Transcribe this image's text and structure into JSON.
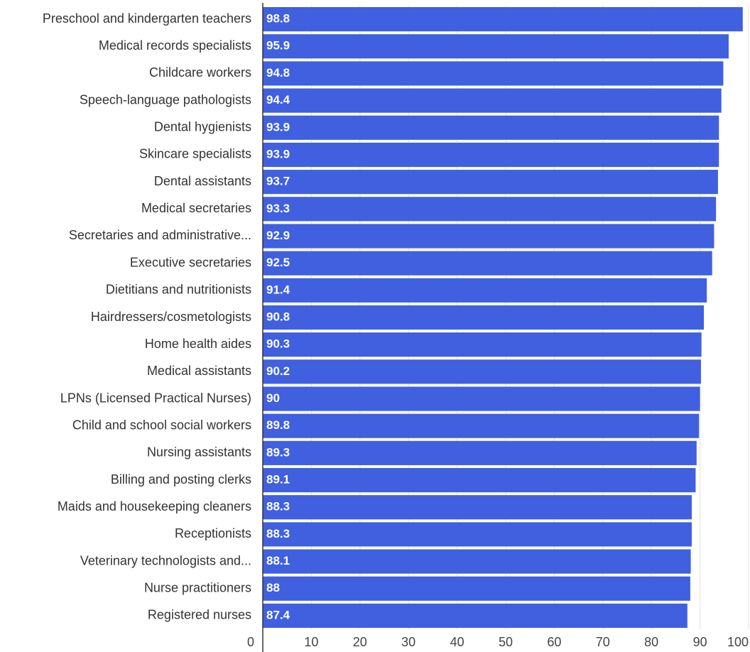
{
  "chart_data": {
    "type": "bar",
    "orientation": "horizontal",
    "categories": [
      "Preschool and kindergarten teachers",
      "Medical records specialists",
      "Childcare workers",
      "Speech-language pathologists",
      "Dental hygienists",
      "Skincare specialists",
      "Dental assistants",
      "Medical secretaries",
      "Secretaries and administrative...",
      "Executive secretaries",
      "Dietitians and nutritionists",
      "Hairdressers/cosmetologists",
      "Home health aides",
      "Medical assistants",
      "LPNs (Licensed Practical Nurses)",
      "Child and school social workers",
      "Nursing assistants",
      "Billing and posting clerks",
      "Maids and housekeeping cleaners",
      "Receptionists",
      "Veterinary technologists and...",
      "Nurse practitioners",
      "Registered nurses"
    ],
    "values": [
      98.8,
      95.9,
      94.8,
      94.4,
      93.9,
      93.9,
      93.7,
      93.3,
      92.9,
      92.5,
      91.4,
      90.8,
      90.3,
      90.2,
      90,
      89.8,
      89.3,
      89.1,
      88.3,
      88.3,
      88.1,
      88,
      87.4
    ],
    "value_labels": [
      "98.8",
      "95.9",
      "94.8",
      "94.4",
      "93.9",
      "93.9",
      "93.7",
      "93.3",
      "92.9",
      "92.5",
      "91.4",
      "90.8",
      "90.3",
      "90.2",
      "90",
      "89.8",
      "89.3",
      "89.1",
      "88.3",
      "88.3",
      "88.1",
      "88",
      "87.4"
    ],
    "xlim": [
      0,
      100
    ],
    "x_ticks": [
      0,
      10,
      20,
      30,
      40,
      50,
      60,
      70,
      80,
      90,
      100
    ],
    "x_tick_labels": [
      "0",
      "10",
      "20",
      "30",
      "40",
      "50",
      "60",
      "70",
      "80",
      "90",
      "100"
    ],
    "grid": true,
    "bar_color": "#4060e0",
    "title": "",
    "xlabel": "",
    "ylabel": ""
  }
}
